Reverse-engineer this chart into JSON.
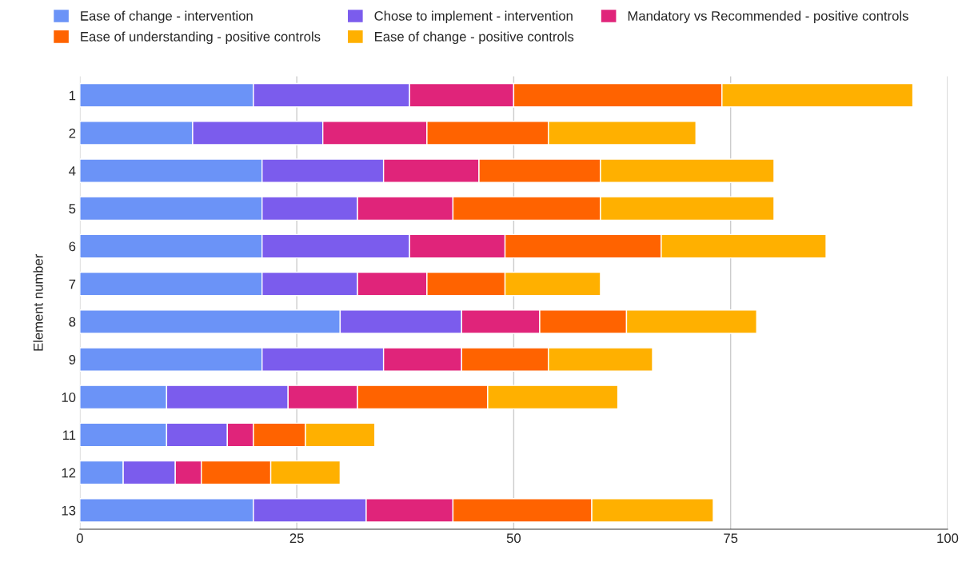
{
  "chart_data": {
    "type": "bar",
    "orientation": "horizontal",
    "stacked": true,
    "ylabel": "Element number",
    "categories": [
      "1",
      "2",
      "4",
      "5",
      "6",
      "7",
      "8",
      "9",
      "10",
      "11",
      "12",
      "13"
    ],
    "series": [
      {
        "name": "Ease of change - intervention",
        "color": "#6b93f7",
        "values": [
          20,
          13,
          21,
          21,
          21,
          21,
          30,
          21,
          10,
          10,
          5,
          20
        ]
      },
      {
        "name": "Chose to implement - intervention",
        "color": "#7b5ced",
        "values": [
          18,
          15,
          14,
          11,
          17,
          11,
          14,
          14,
          14,
          7,
          6,
          13
        ]
      },
      {
        "name": "Mandatory vs Recommended - positive controls",
        "color": "#e0247a",
        "values": [
          12,
          12,
          11,
          11,
          11,
          8,
          9,
          9,
          8,
          3,
          3,
          10
        ]
      },
      {
        "name": "Ease of understanding - positive controls",
        "color": "#ff6300",
        "values": [
          24,
          14,
          14,
          17,
          18,
          9,
          10,
          10,
          15,
          6,
          8,
          16
        ]
      },
      {
        "name": "Ease of change - positive controls",
        "color": "#ffb000",
        "values": [
          22,
          17,
          20,
          20,
          19,
          11,
          15,
          12,
          15,
          8,
          8,
          14
        ]
      }
    ],
    "xlim": [
      0,
      100
    ],
    "xticks": [
      0,
      25,
      50,
      75,
      100
    ],
    "grid": "x",
    "legend": "top"
  }
}
